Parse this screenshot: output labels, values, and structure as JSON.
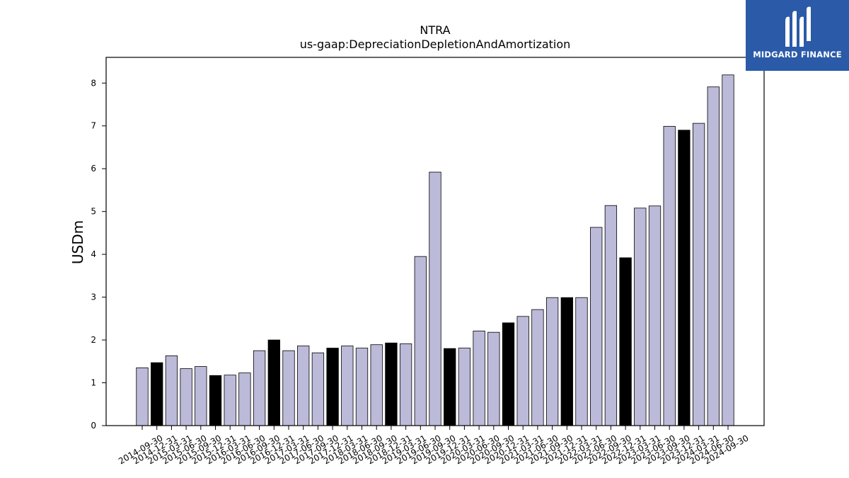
{
  "chart_data": {
    "type": "bar",
    "title": "NTRA",
    "subtitle": "us-gaap:DepreciationDepletionAndAmortization",
    "xlabel": "",
    "ylabel": "USDm",
    "ylim": [
      0,
      8.6
    ],
    "yticks": [
      0,
      1,
      2,
      3,
      4,
      5,
      6,
      7,
      8
    ],
    "grid": false,
    "colors": {
      "default": "#bcbad9",
      "highlight": "#000000",
      "edge": "#000000"
    },
    "categories": [
      "2014-09-30",
      "2014-12-31",
      "2015-03-31",
      "2015-06-30",
      "2015-09-30",
      "2015-12-31",
      "2016-03-31",
      "2016-06-30",
      "2016-09-30",
      "2016-12-31",
      "2017-03-31",
      "2017-06-30",
      "2017-09-30",
      "2017-12-31",
      "2018-03-31",
      "2018-06-30",
      "2018-09-30",
      "2018-12-31",
      "2019-03-31",
      "2019-06-30",
      "2019-09-30",
      "2019-12-31",
      "2020-03-31",
      "2020-06-30",
      "2020-09-30",
      "2020-12-31",
      "2021-03-31",
      "2021-06-30",
      "2021-09-30",
      "2021-12-31",
      "2022-03-31",
      "2022-06-30",
      "2022-09-30",
      "2022-12-31",
      "2023-03-31",
      "2023-06-30",
      "2023-09-30",
      "2023-12-31",
      "2024-03-31",
      "2024-06-30",
      "2024-09-30"
    ],
    "values": [
      1.35,
      1.47,
      1.63,
      1.33,
      1.38,
      1.17,
      1.18,
      1.23,
      1.75,
      2.0,
      1.75,
      1.86,
      1.7,
      1.81,
      1.86,
      1.81,
      1.89,
      1.93,
      1.91,
      3.95,
      5.92,
      1.8,
      1.81,
      2.21,
      2.18,
      2.4,
      2.55,
      2.71,
      2.99,
      2.99,
      2.99,
      4.63,
      5.14,
      3.92,
      5.08,
      5.13,
      6.99,
      6.9,
      7.06,
      7.91,
      8.19
    ],
    "highlight": [
      false,
      true,
      false,
      false,
      false,
      true,
      false,
      false,
      false,
      true,
      false,
      false,
      false,
      true,
      false,
      false,
      false,
      true,
      false,
      false,
      false,
      true,
      false,
      false,
      false,
      true,
      false,
      false,
      false,
      true,
      false,
      false,
      false,
      true,
      false,
      false,
      false,
      true,
      false,
      false,
      false
    ]
  },
  "logo": {
    "text": "MIDGARD FINANCE",
    "background": "#2a5aa8"
  }
}
